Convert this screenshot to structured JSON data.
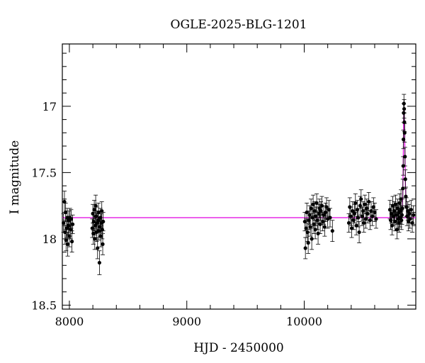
{
  "chart_data": {
    "type": "scatter",
    "title": "OGLE-2025-BLG-1201",
    "xlabel": "HJD - 2450000",
    "ylabel": "I magnitude",
    "xlim": [
      7940,
      10950
    ],
    "ylim": [
      18.53,
      16.53
    ],
    "y_inverted": true,
    "grid": false,
    "x_major_ticks": [
      8000,
      9000,
      10000
    ],
    "x_tick_labels": [
      "8000",
      "9000",
      "10000"
    ],
    "x_minor_step": 200,
    "y_major_ticks": [
      17,
      17.5,
      18,
      18.5
    ],
    "y_tick_labels": [
      "17",
      "17.5",
      "18",
      "18.5"
    ],
    "y_minor_step": 0.1,
    "baseline_magnitude": 17.84,
    "colors": {
      "points": "#000000",
      "model": "#e000e0",
      "axes": "#000000"
    },
    "series": [
      {
        "marker": "filled-circle-with-errorbars",
        "points": [
          [
            7950,
            17.88,
            0.07
          ],
          [
            7958,
            17.72,
            0.08
          ],
          [
            7963,
            17.95,
            0.09
          ],
          [
            7968,
            17.8,
            0.07
          ],
          [
            7972,
            18.01,
            0.08
          ],
          [
            7977,
            17.92,
            0.07
          ],
          [
            7982,
            17.84,
            0.07
          ],
          [
            7986,
            18.04,
            0.09
          ],
          [
            7991,
            17.9,
            0.07
          ],
          [
            7995,
            17.86,
            0.07
          ],
          [
            8000,
            17.98,
            0.08
          ],
          [
            8005,
            17.84,
            0.07
          ],
          [
            8010,
            17.93,
            0.07
          ],
          [
            8015,
            17.85,
            0.07
          ],
          [
            8022,
            18.02,
            0.08
          ],
          [
            8028,
            17.89,
            0.07
          ],
          [
            8195,
            17.92,
            0.07
          ],
          [
            8200,
            17.81,
            0.07
          ],
          [
            8204,
            17.96,
            0.08
          ],
          [
            8208,
            17.87,
            0.07
          ],
          [
            8212,
            17.78,
            0.07
          ],
          [
            8216,
            18.0,
            0.08
          ],
          [
            8220,
            17.9,
            0.07
          ],
          [
            8224,
            17.75,
            0.08
          ],
          [
            8228,
            17.83,
            0.07
          ],
          [
            8232,
            17.95,
            0.07
          ],
          [
            8236,
            17.88,
            0.07
          ],
          [
            8240,
            18.07,
            0.08
          ],
          [
            8244,
            17.86,
            0.07
          ],
          [
            8248,
            17.8,
            0.07
          ],
          [
            8252,
            17.94,
            0.07
          ],
          [
            8256,
            18.18,
            0.09
          ],
          [
            8260,
            17.91,
            0.07
          ],
          [
            8264,
            17.84,
            0.07
          ],
          [
            8268,
            17.98,
            0.08
          ],
          [
            8272,
            17.88,
            0.07
          ],
          [
            8276,
            17.79,
            0.07
          ],
          [
            8280,
            17.93,
            0.07
          ],
          [
            8284,
            18.04,
            0.08
          ],
          [
            8288,
            17.87,
            0.07
          ],
          [
            10005,
            17.87,
            0.07
          ],
          [
            10010,
            18.07,
            0.08
          ],
          [
            10016,
            17.92,
            0.07
          ],
          [
            10022,
            17.8,
            0.07
          ],
          [
            10028,
            17.95,
            0.07
          ],
          [
            10034,
            18.03,
            0.08
          ],
          [
            10040,
            17.86,
            0.07
          ],
          [
            10046,
            17.82,
            0.07
          ],
          [
            10052,
            17.91,
            0.07
          ],
          [
            10058,
            17.77,
            0.07
          ],
          [
            10064,
            18.0,
            0.08
          ],
          [
            10070,
            17.84,
            0.07
          ],
          [
            10076,
            17.74,
            0.07
          ],
          [
            10082,
            17.89,
            0.07
          ],
          [
            10088,
            17.79,
            0.07
          ],
          [
            10094,
            17.93,
            0.07
          ],
          [
            10100,
            17.83,
            0.07
          ],
          [
            10106,
            17.73,
            0.07
          ],
          [
            10112,
            17.86,
            0.07
          ],
          [
            10118,
            17.96,
            0.08
          ],
          [
            10124,
            17.81,
            0.07
          ],
          [
            10130,
            17.77,
            0.07
          ],
          [
            10136,
            17.89,
            0.07
          ],
          [
            10142,
            17.79,
            0.07
          ],
          [
            10150,
            17.75,
            0.07
          ],
          [
            10158,
            17.87,
            0.07
          ],
          [
            10166,
            17.82,
            0.07
          ],
          [
            10174,
            17.91,
            0.07
          ],
          [
            10182,
            17.8,
            0.07
          ],
          [
            10190,
            17.76,
            0.07
          ],
          [
            10200,
            17.85,
            0.07
          ],
          [
            10210,
            17.78,
            0.07
          ],
          [
            10220,
            17.84,
            0.07
          ],
          [
            10240,
            17.94,
            0.08
          ],
          [
            10380,
            17.88,
            0.07
          ],
          [
            10388,
            17.76,
            0.07
          ],
          [
            10396,
            17.83,
            0.07
          ],
          [
            10404,
            17.92,
            0.07
          ],
          [
            10412,
            17.79,
            0.07
          ],
          [
            10420,
            17.86,
            0.07
          ],
          [
            10428,
            17.81,
            0.07
          ],
          [
            10436,
            17.73,
            0.07
          ],
          [
            10444,
            17.9,
            0.07
          ],
          [
            10452,
            17.78,
            0.07
          ],
          [
            10460,
            17.84,
            0.07
          ],
          [
            10468,
            17.95,
            0.08
          ],
          [
            10476,
            17.75,
            0.07
          ],
          [
            10484,
            17.7,
            0.07
          ],
          [
            10492,
            17.83,
            0.07
          ],
          [
            10500,
            17.79,
            0.07
          ],
          [
            10508,
            17.88,
            0.07
          ],
          [
            10516,
            17.74,
            0.07
          ],
          [
            10524,
            17.85,
            0.07
          ],
          [
            10532,
            17.77,
            0.07
          ],
          [
            10540,
            17.81,
            0.07
          ],
          [
            10550,
            17.72,
            0.07
          ],
          [
            10560,
            17.86,
            0.07
          ],
          [
            10570,
            17.79,
            0.07
          ],
          [
            10580,
            17.83,
            0.07
          ],
          [
            10590,
            17.76,
            0.07
          ],
          [
            10600,
            17.8,
            0.07
          ],
          [
            10612,
            17.85,
            0.07
          ],
          [
            10730,
            17.78,
            0.07
          ],
          [
            10736,
            17.86,
            0.07
          ],
          [
            10742,
            17.81,
            0.07
          ],
          [
            10748,
            17.9,
            0.07
          ],
          [
            10754,
            17.75,
            0.07
          ],
          [
            10760,
            17.83,
            0.07
          ],
          [
            10766,
            17.79,
            0.07
          ],
          [
            10772,
            17.87,
            0.07
          ],
          [
            10778,
            17.74,
            0.07
          ],
          [
            10784,
            17.82,
            0.07
          ],
          [
            10790,
            17.93,
            0.07
          ],
          [
            10795,
            17.77,
            0.07
          ],
          [
            10800,
            17.85,
            0.07
          ],
          [
            10804,
            17.8,
            0.07
          ],
          [
            10808,
            17.88,
            0.07
          ],
          [
            10812,
            17.73,
            0.07
          ],
          [
            10816,
            17.84,
            0.07
          ],
          [
            10820,
            17.79,
            0.07
          ],
          [
            10824,
            17.7,
            0.07
          ],
          [
            10828,
            17.86,
            0.07
          ],
          [
            10832,
            17.82,
            0.07
          ],
          [
            10836,
            17.77,
            0.07
          ],
          [
            10840,
            17.62,
            0.07
          ],
          [
            10843,
            17.45,
            0.07
          ],
          [
            10845,
            17.25,
            0.07
          ],
          [
            10847,
            17.05,
            0.07
          ],
          [
            10849,
            16.98,
            0.07
          ],
          [
            10851,
            17.02,
            0.07
          ],
          [
            10853,
            17.12,
            0.07
          ],
          [
            10855,
            17.2,
            0.07
          ],
          [
            10858,
            17.38,
            0.07
          ],
          [
            10861,
            17.55,
            0.07
          ],
          [
            10865,
            17.68,
            0.07
          ],
          [
            10870,
            17.76,
            0.07
          ],
          [
            10876,
            17.83,
            0.07
          ],
          [
            10882,
            17.79,
            0.07
          ],
          [
            10888,
            17.87,
            0.07
          ],
          [
            10894,
            17.81,
            0.07
          ],
          [
            10900,
            17.85,
            0.07
          ],
          [
            10910,
            17.78,
            0.07
          ],
          [
            10920,
            17.88,
            0.07
          ],
          [
            10930,
            17.82,
            0.07
          ]
        ]
      }
    ]
  }
}
